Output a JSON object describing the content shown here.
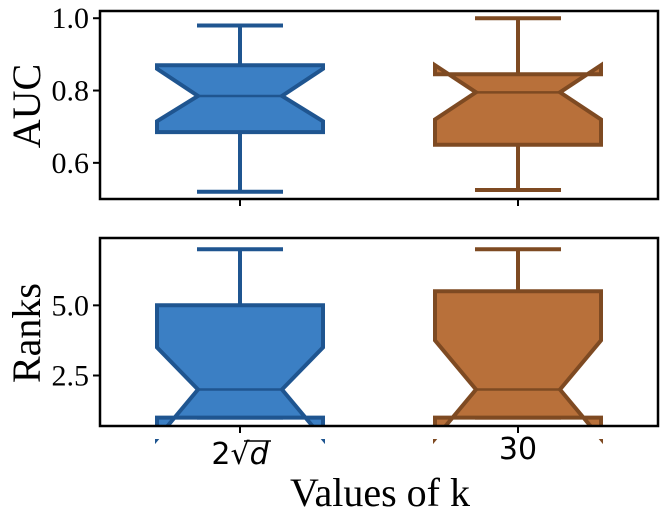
{
  "colors": {
    "series1_fill": "#3b7fc4",
    "series1_edge": "#1f5590",
    "series2_fill": "#b8703a",
    "series2_edge": "#7e4a22",
    "axis": "#000000"
  },
  "chart_data": [
    {
      "type": "boxplot",
      "notched": true,
      "ylabel": "AUC",
      "xlabel": "",
      "ylim": [
        0.5,
        1.02
      ],
      "yticks": [
        "0.6",
        "0.8",
        "1.0"
      ],
      "ytick_values": [
        0.6,
        0.8,
        1.0
      ],
      "categories": [
        "2√d",
        "30"
      ],
      "boxes": [
        {
          "whislo": 0.52,
          "q1": 0.685,
          "notch_lo": 0.715,
          "med": 0.785,
          "notch_hi": 0.86,
          "q3": 0.87,
          "whishi": 0.98
        },
        {
          "whislo": 0.525,
          "q1": 0.65,
          "notch_lo": 0.72,
          "med": 0.795,
          "notch_hi": 0.87,
          "q3": 0.845,
          "whishi": 1.0
        }
      ]
    },
    {
      "type": "boxplot",
      "notched": true,
      "ylabel": "Ranks",
      "xlabel": "Values of k",
      "ylim": [
        0.7,
        7.4
      ],
      "yticks": [
        "2.5",
        "5.0"
      ],
      "ytick_values": [
        2.5,
        5.0
      ],
      "categories": [
        "2√d",
        "30"
      ],
      "boxes": [
        {
          "whislo": 1.0,
          "q1": 1.0,
          "notch_lo": 0.25,
          "med": 2.0,
          "notch_hi": 3.5,
          "q3": 5.0,
          "whishi": 7.0
        },
        {
          "whislo": 1.0,
          "q1": 1.0,
          "notch_lo": 0.25,
          "med": 2.0,
          "notch_hi": 3.75,
          "q3": 5.5,
          "whishi": 7.0
        }
      ]
    }
  ],
  "x_tick_labels": {
    "a_prefix": "2",
    "a_radical": "√",
    "a_var": "d",
    "b": "30"
  }
}
